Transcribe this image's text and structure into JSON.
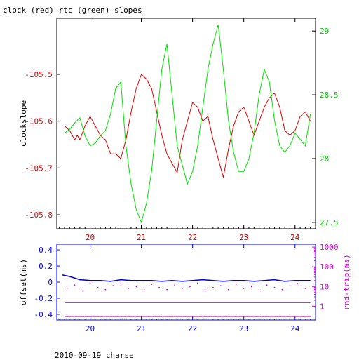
{
  "footer_text": "2010-09-19 charse",
  "chart_data": [
    {
      "type": "line",
      "title": "clock (red) rtc (green) slopes",
      "ylabel": "clockslope",
      "y2label": "",
      "xlim": [
        19.35,
        24.4
      ],
      "ylim": [
        -105.83,
        -105.38
      ],
      "y2lim": [
        27.45,
        29.1
      ],
      "x_ticks": [
        20,
        21,
        22,
        23,
        24
      ],
      "x_tick_labels": [
        "20",
        "21",
        "22",
        "23",
        "24"
      ],
      "y_ticks": [
        -105.5,
        -105.6,
        -105.7,
        -105.8
      ],
      "y_tick_labels": [
        "-105.5",
        "-105.6",
        "-105.7",
        "-105.8"
      ],
      "y2_ticks": [
        29,
        28.5,
        28,
        27.5
      ],
      "y2_tick_labels": [
        "29",
        "28.5",
        "28",
        "27.5"
      ],
      "grid": false,
      "colors": {
        "frame": "#000000",
        "clock": "#e00000",
        "rtc": "#00e000",
        "x_tick_text": "#e00000",
        "y_tick_text": "#e00000",
        "y2_tick_text": "#00c800"
      },
      "series": [
        {
          "name": "clock",
          "axis": "left",
          "x": [
            19.5,
            19.6,
            19.7,
            19.75,
            19.8,
            19.9,
            20.0,
            20.1,
            20.2,
            20.3,
            20.4,
            20.5,
            20.6,
            20.7,
            20.8,
            20.9,
            21.0,
            21.1,
            21.2,
            21.3,
            21.4,
            21.5,
            21.6,
            21.7,
            21.8,
            21.9,
            22.0,
            22.1,
            22.2,
            22.3,
            22.4,
            22.5,
            22.6,
            22.7,
            22.8,
            22.9,
            23.0,
            23.1,
            23.2,
            23.3,
            23.4,
            23.5,
            23.6,
            23.7,
            23.8,
            23.9,
            24.0,
            24.1,
            24.2,
            24.3
          ],
          "y": [
            -105.61,
            -105.62,
            -105.64,
            -105.63,
            -105.64,
            -105.61,
            -105.59,
            -105.61,
            -105.63,
            -105.64,
            -105.67,
            -105.67,
            -105.68,
            -105.64,
            -105.58,
            -105.53,
            -105.5,
            -105.51,
            -105.53,
            -105.58,
            -105.63,
            -105.67,
            -105.69,
            -105.71,
            -105.64,
            -105.6,
            -105.56,
            -105.57,
            -105.6,
            -105.59,
            -105.64,
            -105.68,
            -105.72,
            -105.66,
            -105.61,
            -105.58,
            -105.57,
            -105.6,
            -105.63,
            -105.6,
            -105.57,
            -105.55,
            -105.54,
            -105.57,
            -105.62,
            -105.63,
            -105.62,
            -105.59,
            -105.58,
            -105.6
          ]
        },
        {
          "name": "rtc",
          "axis": "right",
          "x": [
            19.5,
            19.6,
            19.7,
            19.8,
            19.9,
            20.0,
            20.1,
            20.2,
            20.3,
            20.4,
            20.5,
            20.6,
            20.7,
            20.8,
            20.9,
            21.0,
            21.1,
            21.2,
            21.3,
            21.4,
            21.5,
            21.6,
            21.7,
            21.8,
            21.9,
            22.0,
            22.1,
            22.2,
            22.3,
            22.4,
            22.5,
            22.6,
            22.7,
            22.8,
            22.9,
            23.0,
            23.1,
            23.2,
            23.3,
            23.4,
            23.5,
            23.6,
            23.7,
            23.8,
            23.9,
            24.0,
            24.1,
            24.2,
            24.3
          ],
          "y": [
            28.2,
            28.23,
            28.28,
            28.32,
            28.18,
            28.1,
            28.12,
            28.18,
            28.22,
            28.35,
            28.55,
            28.6,
            28.1,
            27.8,
            27.6,
            27.5,
            27.65,
            27.9,
            28.3,
            28.7,
            28.9,
            28.5,
            28.1,
            27.95,
            27.8,
            27.9,
            28.1,
            28.4,
            28.7,
            28.9,
            29.05,
            28.7,
            28.3,
            28.05,
            27.9,
            27.9,
            28.0,
            28.2,
            28.5,
            28.7,
            28.6,
            28.3,
            28.1,
            28.05,
            28.1,
            28.2,
            28.15,
            28.1,
            28.35
          ]
        }
      ],
      "annotations": []
    },
    {
      "type": "scatter",
      "title": "",
      "ylabel": "offset(ms)",
      "y2label": "rnd-trip(ms)",
      "xlim": [
        19.35,
        24.4
      ],
      "ylim": [
        -0.47,
        0.47
      ],
      "y2_scale": "log",
      "y2lim": [
        0.2,
        1400
      ],
      "x_ticks": [
        20,
        21,
        22,
        23,
        24
      ],
      "x_tick_labels": [
        "20",
        "21",
        "22",
        "23",
        "24"
      ],
      "y_ticks": [
        0.4,
        0.2,
        0,
        -0.2,
        -0.4
      ],
      "y_tick_labels": [
        "0.4",
        "0.2",
        "0",
        "-0.2",
        "-0.4"
      ],
      "y2_ticks": [
        1000,
        100,
        10,
        1
      ],
      "y2_tick_labels": [
        "1000",
        "100",
        "10",
        "1"
      ],
      "grid": false,
      "colors": {
        "frame": "#0000ff",
        "offset": "#0000c8",
        "rndtrip": "#e000e0",
        "x_tick_text": "#0000ff",
        "y_tick_text": "#0000ff",
        "y2_tick_text": "#e000e0",
        "ylabel": "#000000",
        "y2label": "#e000e0"
      },
      "series": [
        {
          "name": "offset",
          "axis": "left",
          "x": [
            19.45,
            19.6,
            19.8,
            20.0,
            20.2,
            20.4,
            20.6,
            20.8,
            21.0,
            21.2,
            21.4,
            21.6,
            21.8,
            22.0,
            22.2,
            22.4,
            22.6,
            22.8,
            23.0,
            23.2,
            23.4,
            23.6,
            23.8,
            24.0,
            24.2,
            24.3
          ],
          "y": [
            0.09,
            0.07,
            0.03,
            0.02,
            0.02,
            0.01,
            0.03,
            0.02,
            0.02,
            0.02,
            0.01,
            0.02,
            0.01,
            0.02,
            0.03,
            0.02,
            0.01,
            0.02,
            0.02,
            0.01,
            0.02,
            0.03,
            0.01,
            0.02,
            0.02,
            0.02
          ]
        },
        {
          "name": "rnd-trip lower band",
          "axis": "right",
          "x": [
            19.5,
            24.3
          ],
          "y": [
            0.3,
            0.3
          ]
        },
        {
          "name": "rnd-trip middle band",
          "axis": "right",
          "x": [
            19.5,
            24.3
          ],
          "y": [
            1.5,
            1.5
          ]
        },
        {
          "name": "rnd-trip scatter",
          "axis": "right",
          "x": [
            19.55,
            19.7,
            19.85,
            20.0,
            20.15,
            20.3,
            20.45,
            20.6,
            20.75,
            20.9,
            21.05,
            21.2,
            21.35,
            21.5,
            21.65,
            21.8,
            21.95,
            22.1,
            22.25,
            22.4,
            22.55,
            22.7,
            22.85,
            23.0,
            23.15,
            23.3,
            23.45,
            23.6,
            23.75,
            23.9,
            24.05,
            24.2
          ],
          "y": [
            8,
            12,
            6,
            15,
            9,
            7,
            11,
            14,
            8,
            10,
            6,
            13,
            9,
            7,
            12,
            8,
            10,
            15,
            6,
            9,
            11,
            7,
            13,
            8,
            10,
            6,
            12,
            9,
            7,
            11,
            14,
            8
          ]
        }
      ],
      "annotations": []
    }
  ]
}
